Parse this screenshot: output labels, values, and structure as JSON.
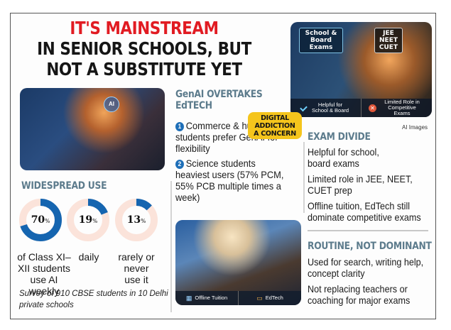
{
  "headline": {
    "line1": "IT'S MAINSTREAM",
    "line2": "IN SENIOR SCHOOLS, BUT",
    "line3": "NOT A SUBSTITUTE YET",
    "accent_color": "#e11b22"
  },
  "images": {
    "top_left": {
      "ai_badge": "AI"
    },
    "top_right": {
      "sign_left": "School & Board Exams",
      "sign_right": "JEE NEET CUET",
      "bar_left": "Helpful for School & Board",
      "bar_right": "Limited Role in Competitive Exams"
    },
    "bottom_mid": {
      "bar_left": "Offline Tuition",
      "bar_right": "EdTech"
    },
    "credit": "AI Images"
  },
  "genai": {
    "heading_line1": "GenAI OVERTAKES",
    "heading_line2": "EdTECH",
    "items": [
      {
        "num": "1",
        "text": "Commerce & humanities students prefer GenAI for flexibility"
      },
      {
        "num": "2",
        "text": "Science students heaviest users (57% PCM, 55% PCB multiple times a week)"
      }
    ]
  },
  "sticker": {
    "line1": "DIGITAL",
    "line2": "ADDICTION",
    "line3": "A CONCERN",
    "color": "#f5c51c"
  },
  "widespread": {
    "heading": "WIDESPREAD USE",
    "donuts": [
      {
        "value": "70",
        "unit": "%",
        "caption": "of Class XI– XII students use AI weekly"
      },
      {
        "value": "19",
        "unit": "%",
        "caption": "daily"
      },
      {
        "value": "13",
        "unit": "%",
        "caption": "rarely or never use it"
      }
    ],
    "fill_color": "#1565b0",
    "track_color": "#fbe3da",
    "survey_note": "Survey of 910 CBSE students in 10 Delhi private schools"
  },
  "chart_data": {
    "type": "pie",
    "title": "WIDESPREAD USE",
    "categories": [
      "Weekly (Class XI–XII)",
      "Daily",
      "Rarely or never"
    ],
    "values": [
      70,
      19,
      13
    ],
    "unit": "%",
    "note": "Survey of 910 CBSE students in 10 Delhi private schools"
  },
  "exam_divide": {
    "heading": "EXAM DIVIDE",
    "items": [
      "Helpful for school,|board exams",
      "Limited role in JEE, NEET,|CUET prep",
      "Offline tuition, EdTech still|dominate competitive exams"
    ]
  },
  "routine": {
    "heading": "ROUTINE, NOT DOMINANT",
    "items": [
      "Used for search, writing help,|concept clarity",
      "Not replacing teachers or|coaching for major exams"
    ]
  }
}
